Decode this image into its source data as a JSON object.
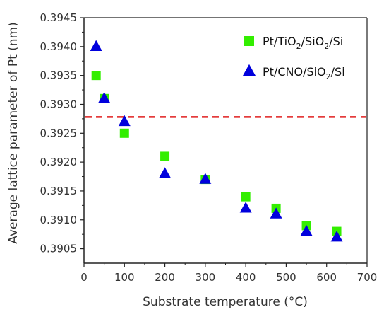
{
  "chart_data": {
    "type": "scatter",
    "xlabel": "Substrate temperature (°C)",
    "ylabel": "Average lattice parameter of Pt (nm)",
    "xlim": [
      0,
      700
    ],
    "ylim": [
      0.39025,
      0.3945
    ],
    "x_ticks": [
      "0",
      "100",
      "200",
      "300",
      "400",
      "500",
      "600",
      "700"
    ],
    "y_ticks": [
      "0.3905",
      "0.3910",
      "0.3915",
      "0.3920",
      "0.3925",
      "0.3930",
      "0.3935",
      "0.3940",
      "0.3945"
    ],
    "reference_line": {
      "y": 0.39278,
      "color": "#e02020",
      "style": "dashed"
    },
    "legend_position": "top-right",
    "series": [
      {
        "name": "Pt/TiO2/SiO2/Si",
        "legend_parts": [
          {
            "t": "Pt/TiO",
            "sub": false
          },
          {
            "t": "2",
            "sub": true
          },
          {
            "t": "/SiO",
            "sub": false
          },
          {
            "t": "2",
            "sub": true
          },
          {
            "t": "/Si",
            "sub": false
          }
        ],
        "marker": "square",
        "color": "#33ee00",
        "points": [
          {
            "x": 30,
            "y": 0.3935
          },
          {
            "x": 50,
            "y": 0.3931
          },
          {
            "x": 100,
            "y": 0.3925
          },
          {
            "x": 200,
            "y": 0.3921
          },
          {
            "x": 300,
            "y": 0.3917
          },
          {
            "x": 400,
            "y": 0.3914
          },
          {
            "x": 475,
            "y": 0.3912
          },
          {
            "x": 550,
            "y": 0.3909
          },
          {
            "x": 625,
            "y": 0.3908
          }
        ]
      },
      {
        "name": "Pt/CNO/SiO2/Si",
        "legend_parts": [
          {
            "t": "Pt/CNO/SiO",
            "sub": false
          },
          {
            "t": "2",
            "sub": true
          },
          {
            "t": "/Si",
            "sub": false
          }
        ],
        "marker": "triangle",
        "color": "#0000dd",
        "points": [
          {
            "x": 30,
            "y": 0.394
          },
          {
            "x": 50,
            "y": 0.3931
          },
          {
            "x": 100,
            "y": 0.3927
          },
          {
            "x": 200,
            "y": 0.3918
          },
          {
            "x": 300,
            "y": 0.3917
          },
          {
            "x": 400,
            "y": 0.3912
          },
          {
            "x": 475,
            "y": 0.3911
          },
          {
            "x": 550,
            "y": 0.3908
          },
          {
            "x": 625,
            "y": 0.3907
          }
        ]
      }
    ]
  }
}
